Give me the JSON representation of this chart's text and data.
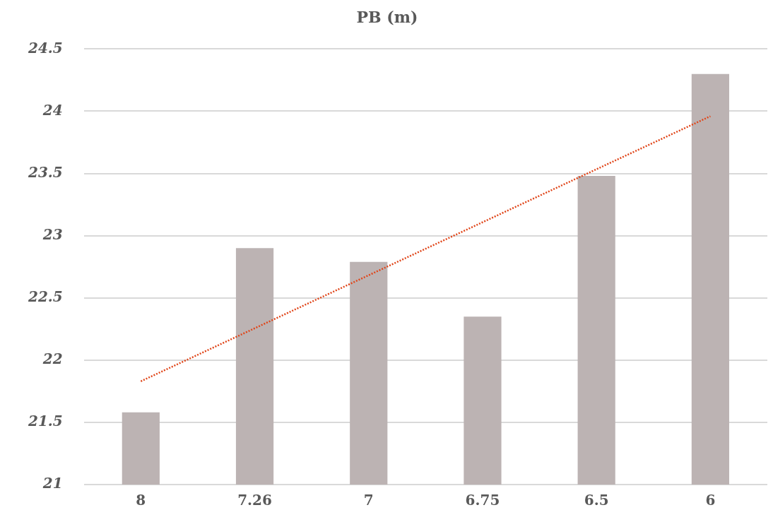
{
  "chart_data": {
    "type": "bar",
    "title": "PB (m)",
    "categories": [
      "8",
      "7.26",
      "7",
      "6.75",
      "6.5",
      "6"
    ],
    "series": [
      {
        "color": "#bcb3b3",
        "values": [
          21.58,
          22.9,
          22.79,
          22.35,
          23.48,
          24.3
        ]
      },
      {
        "type": "line",
        "color": "#e0461a",
        "x": [
          "8",
          "6"
        ],
        "values": [
          21.83,
          23.96
        ],
        "line_style": "dotted",
        "marker": "none"
      }
    ],
    "ylim": [
      21,
      24.5
    ],
    "yticks": [
      21,
      21.5,
      22,
      22.5,
      23,
      23.5,
      24,
      24.5
    ],
    "grid": "y",
    "legend": false
  }
}
